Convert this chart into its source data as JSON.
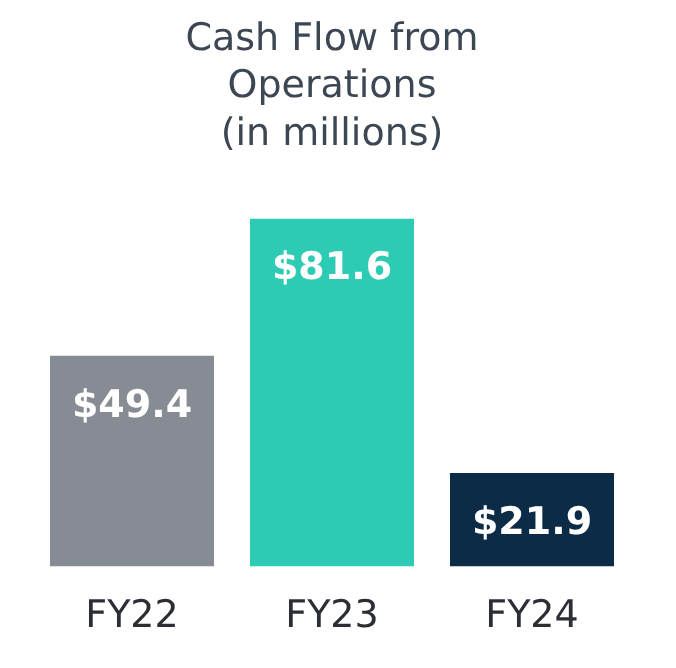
{
  "chart_data": {
    "type": "bar",
    "title": "Cash Flow from\nOperations\n(in millions)",
    "categories": [
      "FY22",
      "FY23",
      "FY24"
    ],
    "values": [
      49.4,
      81.6,
      21.9
    ],
    "colors": [
      "#878b93",
      "#2dcbb3",
      "#0c2b47"
    ],
    "value_labels": [
      "$49.4",
      "$81.6",
      "$21.9"
    ],
    "grid": false,
    "legend": false
  }
}
